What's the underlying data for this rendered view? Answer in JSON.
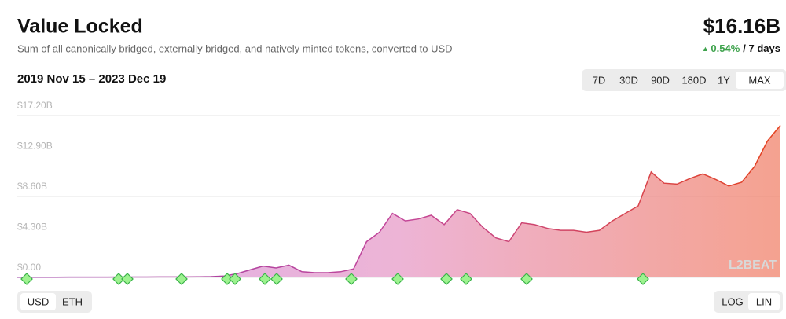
{
  "header": {
    "title": "Value Locked",
    "subtitle": "Sum of all canonically bridged, externally bridged, and natively minted tokens, converted to USD",
    "current_value": "$16.16B",
    "change": "0.54%",
    "change_period": "/ 7 days",
    "date_range": "2019 Nov 15 – 2023 Dec 19"
  },
  "controls": {
    "ranges": [
      "7D",
      "30D",
      "90D",
      "180D",
      "1Y",
      "MAX"
    ],
    "selected_range": "MAX",
    "units": [
      "USD",
      "ETH"
    ],
    "selected_unit": "USD",
    "scales": [
      "LOG",
      "LIN"
    ],
    "selected_scale": "LIN"
  },
  "chart_data": {
    "type": "area",
    "watermark": "L2BEAT",
    "values": [
      0.02,
      0.02,
      0.02,
      0.02,
      0.03,
      0.03,
      0.03,
      0.03,
      0.04,
      0.04,
      0.04,
      0.05,
      0.05,
      0.05,
      0.06,
      0.08,
      0.15,
      0.4,
      0.8,
      1.2,
      1.0,
      1.3,
      0.6,
      0.5,
      0.5,
      0.6,
      0.9,
      3.8,
      4.8,
      6.8,
      6.0,
      6.2,
      6.6,
      5.6,
      7.2,
      6.8,
      5.3,
      4.2,
      3.8,
      5.8,
      5.6,
      5.2,
      5.0,
      5.0,
      4.8,
      5.0,
      6.0,
      6.8,
      7.6,
      11.2,
      10.0,
      9.9,
      10.5,
      11.0,
      10.4,
      9.7,
      10.1,
      11.8,
      14.5,
      16.16
    ],
    "ylim": [
      0,
      17.2
    ],
    "yticks": [
      {
        "value": 0,
        "label": "$0.00"
      },
      {
        "value": 4.3,
        "label": "$4.30B"
      },
      {
        "value": 8.6,
        "label": "$8.60B"
      },
      {
        "value": 12.9,
        "label": "$12.90B"
      },
      {
        "value": 17.2,
        "label": "$17.20B"
      }
    ],
    "grid": true
  }
}
